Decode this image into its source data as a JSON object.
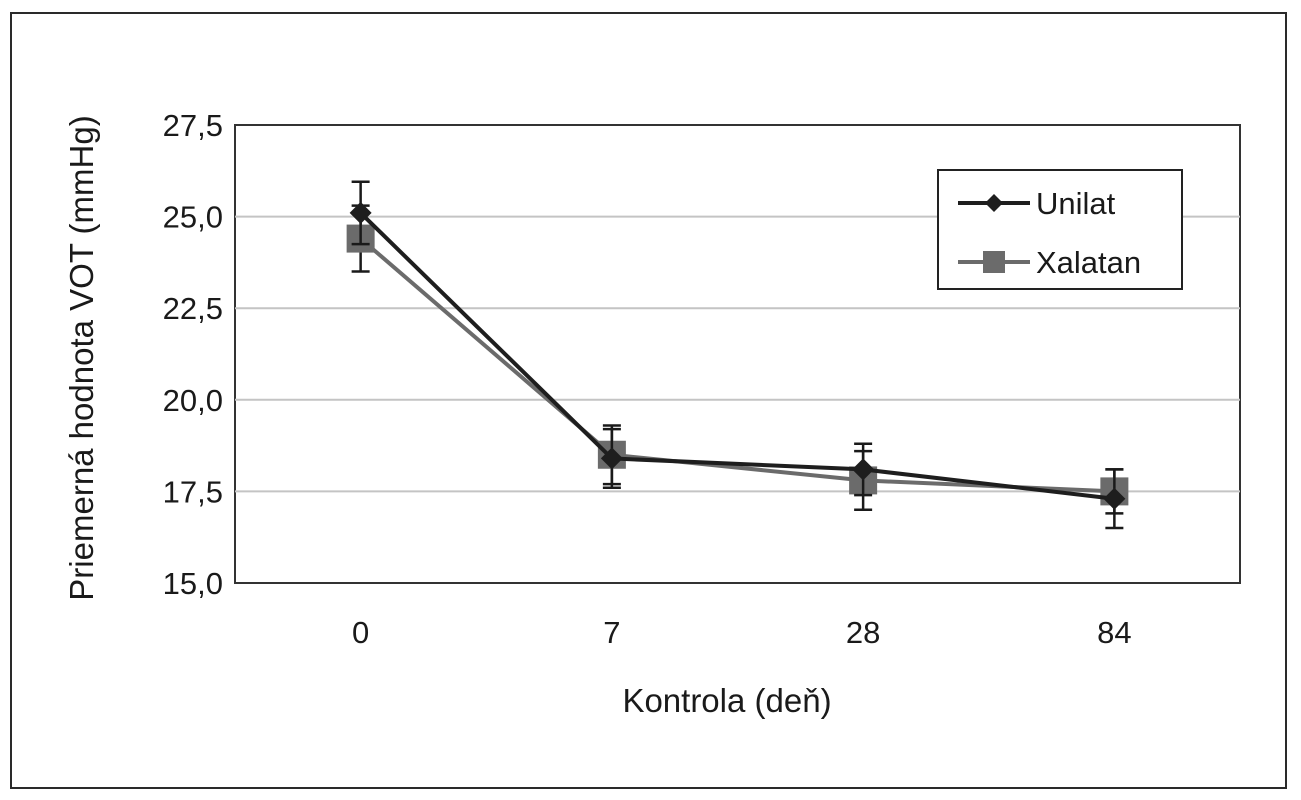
{
  "chart_data": {
    "type": "line",
    "title": "",
    "xlabel": "Kontrola (deň)",
    "ylabel": "Priemerná hodnota VOT (mmHg)",
    "categories": [
      "0",
      "7",
      "28",
      "84"
    ],
    "yticks": [
      "15,0",
      "17,5",
      "20,0",
      "22,5",
      "25,0",
      "27,5"
    ],
    "ylim": [
      15.0,
      27.5
    ],
    "grid": true,
    "legend_position": "top-right",
    "series": [
      {
        "name": "Unilat",
        "marker": "diamond",
        "color": "#1e1e1e",
        "values": [
          25.1,
          18.4,
          18.1,
          17.3
        ],
        "error": [
          0.85,
          0.8,
          0.7,
          0.8
        ]
      },
      {
        "name": "Xalatan",
        "marker": "square",
        "color": "#6b6b6b",
        "values": [
          24.4,
          18.5,
          17.8,
          17.5
        ],
        "error": [
          0.9,
          0.8,
          0.8,
          0.6
        ]
      }
    ]
  }
}
